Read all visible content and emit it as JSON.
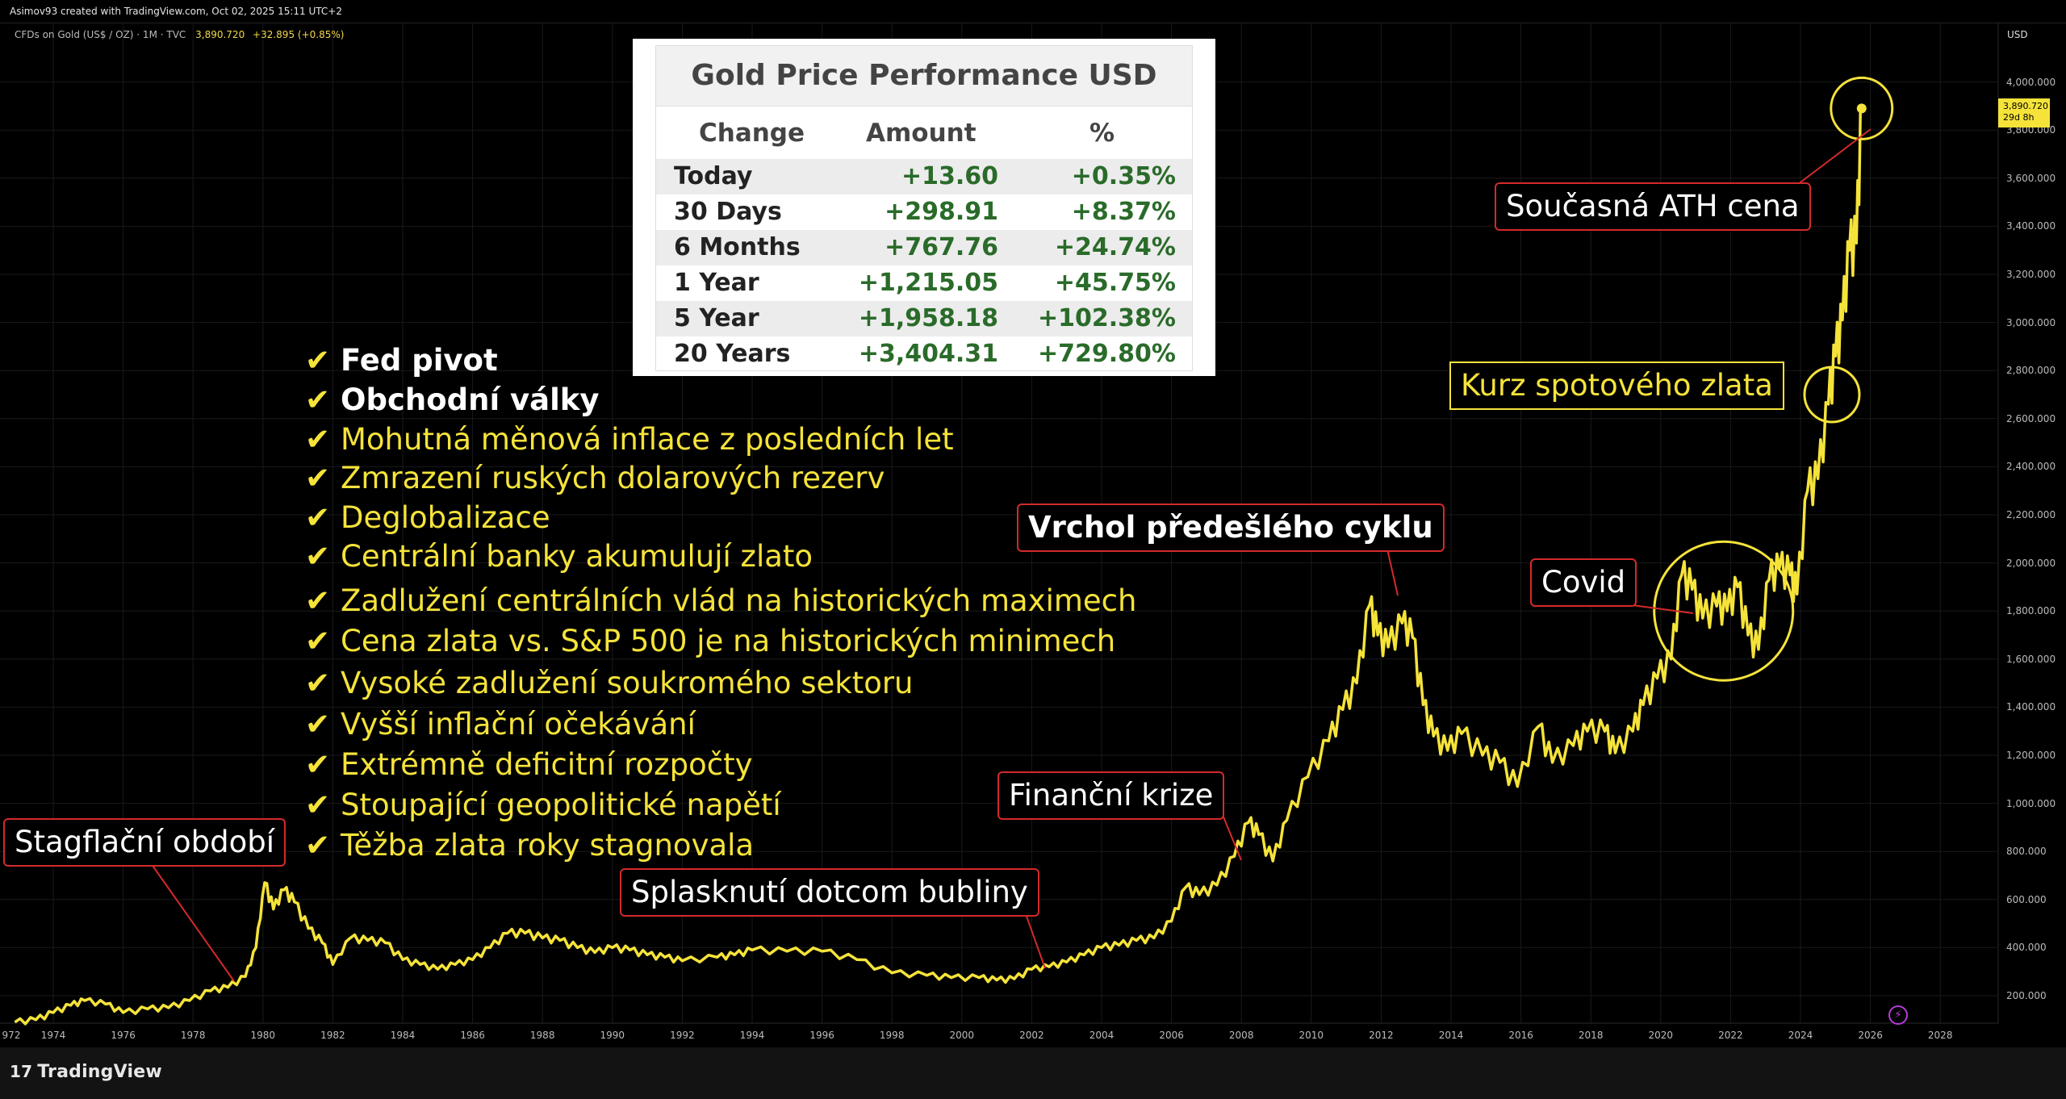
{
  "header": {
    "attribution": "Asimov93 created with TradingView.com, Oct 02, 2025 15:11 UTC+2",
    "symbol": "CFDs on Gold (US$ / OZ) · 1M · TVC",
    "last_price": "3,890.720",
    "change": "+32.895 (+0.85%)"
  },
  "axis": {
    "currency": "USD",
    "price_badge_value": "3,890.720",
    "price_badge_countdown": "29d 8h"
  },
  "footer": {
    "brand": "TradingView"
  },
  "performance_table": {
    "title": "Gold Price Performance USD",
    "columns": [
      "Change",
      "Amount",
      "%"
    ],
    "rows": [
      {
        "period": "Today",
        "amount": "+13.60",
        "percent": "+0.35%"
      },
      {
        "period": "30 Days",
        "amount": "+298.91",
        "percent": "+8.37%"
      },
      {
        "period": "6 Months",
        "amount": "+767.76",
        "percent": "+24.74%"
      },
      {
        "period": "1 Year",
        "amount": "+1,215.05",
        "percent": "+45.75%"
      },
      {
        "period": "5 Year",
        "amount": "+1,958.18",
        "percent": "+102.38%"
      },
      {
        "period": "20 Years",
        "amount": "+3,404.31",
        "percent": "+729.80%"
      }
    ]
  },
  "checklist": [
    {
      "text": "Fed pivot",
      "style": "white"
    },
    {
      "text": "Obchodní války",
      "style": "white"
    },
    {
      "text": "Mohutná měnová inflace z posledních let",
      "style": "yellow"
    },
    {
      "text": "Zmrazení ruských dolarových rezerv",
      "style": "yellow"
    },
    {
      "text": "Deglobalizace",
      "style": "yellow"
    },
    {
      "text": "Centrální banky akumulují zlato",
      "style": "yellow"
    },
    {
      "text": "Zadlužení centrálních vlád na historických maximech",
      "style": "yellow"
    },
    {
      "text": "Cena zlata vs. S&P 500 je na historických minimech",
      "style": "yellow"
    },
    {
      "text": "Vysoké zadlužení soukromého sektoru",
      "style": "yellow"
    },
    {
      "text": "Vyšší inflační očekávání",
      "style": "yellow"
    },
    {
      "text": "Extrémně deficitní rozpočty",
      "style": "yellow"
    },
    {
      "text": "Stoupající geopolitické napětí",
      "style": "yellow"
    },
    {
      "text": "Těžba zlata roky stagnovala",
      "style": "yellow"
    }
  ],
  "callouts": {
    "stagflation": "Stagflační období",
    "dotcom": "Splasknutí dotcom bubliny",
    "financial_crisis": "Finanční krize",
    "previous_peak": "Vrchol předešlého cyklu",
    "covid": "Covid",
    "current_ath": "Současná ATH cena",
    "spot_rate": "Kurz spotového zlata"
  },
  "chart_data": {
    "type": "line",
    "title": "",
    "xlabel": "",
    "ylabel": "",
    "series": [
      {
        "name": "",
        "color": "#f5e33a",
        "x": [
          1972.9,
          1973.5,
          1974.0,
          1974.5,
          1974.9,
          1975.5,
          1976.0,
          1976.7,
          1977.3,
          1977.9,
          1978.5,
          1979.0,
          1979.5,
          1979.8,
          1980.05,
          1980.3,
          1980.6,
          1980.9,
          1981.3,
          1981.7,
          1982.0,
          1982.5,
          1983.0,
          1983.5,
          1984.0,
          1984.5,
          1985.0,
          1985.5,
          1986.0,
          1986.5,
          1987.0,
          1987.5,
          1988.0,
          1988.5,
          1989.0,
          1989.5,
          1990.0,
          1990.5,
          1991.0,
          1991.5,
          1992.0,
          1993.0,
          1993.5,
          1994.0,
          1995.0,
          1996.0,
          1997.0,
          1998.0,
          1999.0,
          1999.7,
          2000.5,
          2001.0,
          2001.5,
          2002.0,
          2002.5,
          2003.0,
          2003.5,
          2004.0,
          2004.5,
          2005.0,
          2005.5,
          2006.0,
          2006.4,
          2006.8,
          2007.3,
          2007.8,
          2008.2,
          2008.5,
          2008.9,
          2009.3,
          2009.9,
          2010.5,
          2010.9,
          2011.3,
          2011.67,
          2011.9,
          2012.2,
          2012.6,
          2012.9,
          2013.2,
          2013.5,
          2013.9,
          2014.3,
          2014.9,
          2015.4,
          2015.9,
          2016.5,
          2016.9,
          2017.5,
          2017.9,
          2018.4,
          2018.7,
          2019.2,
          2019.5,
          2019.9,
          2020.3,
          2020.6,
          2020.9,
          2021.2,
          2021.6,
          2021.9,
          2022.2,
          2022.5,
          2022.8,
          2023.1,
          2023.4,
          2023.7,
          2023.9,
          2024.2,
          2024.5,
          2024.8,
          2025.0,
          2025.2,
          2025.4,
          2025.6,
          2025.75
        ],
        "y": [
          90,
          100,
          130,
          160,
          180,
          165,
          130,
          145,
          150,
          180,
          220,
          235,
          280,
          400,
          670,
          560,
          640,
          590,
          480,
          420,
          330,
          440,
          430,
          420,
          350,
          330,
          310,
          330,
          350,
          400,
          460,
          460,
          440,
          430,
          400,
          380,
          400,
          390,
          370,
          360,
          345,
          360,
          370,
          390,
          385,
          385,
          350,
          295,
          285,
          275,
          275,
          265,
          270,
          310,
          320,
          340,
          370,
          400,
          410,
          430,
          440,
          510,
          650,
          620,
          660,
          780,
          920,
          870,
          760,
          930,
          1110,
          1260,
          1390,
          1500,
          1825,
          1700,
          1650,
          1750,
          1690,
          1410,
          1280,
          1220,
          1290,
          1200,
          1170,
          1070,
          1320,
          1170,
          1240,
          1300,
          1300,
          1210,
          1300,
          1410,
          1520,
          1600,
          1950,
          1890,
          1770,
          1820,
          1800,
          1900,
          1700,
          1640,
          1930,
          1980,
          1950,
          1870,
          2300,
          2350,
          2660,
          2860,
          3010,
          3300,
          3330,
          3890
        ]
      }
    ],
    "y_ticks": [
      "4,000.000",
      "3,800.000",
      "3,600.000",
      "3,400.000",
      "3,200.000",
      "3,000.000",
      "2,800.000",
      "2,600.000",
      "2,400.000",
      "2,200.000",
      "2,000.000",
      "1,800.000",
      "1,600.000",
      "1,400.000",
      "1,200.000",
      "1,000.000",
      "800.000",
      "600.000",
      "400.000",
      "200.000"
    ],
    "x_ticks": [
      "972",
      "1974",
      "1976",
      "1978",
      "1980",
      "1982",
      "1984",
      "1986",
      "1988",
      "1990",
      "1992",
      "1994",
      "1996",
      "1998",
      "2000",
      "2002",
      "2004",
      "2006",
      "2008",
      "2010",
      "2012",
      "2014",
      "2016",
      "2018",
      "2020",
      "2022",
      "2024",
      "2026",
      "2028"
    ],
    "xlim": [
      1972.75,
      2029.0
    ],
    "ylim": [
      0,
      4300
    ],
    "grid": true,
    "highlight_circles": [
      {
        "label": "current_ath",
        "x": 2025.75,
        "y": 3890
      },
      {
        "label": "spot_rate",
        "x": 2024.9,
        "y": 2700
      },
      {
        "label": "covid",
        "x": 2021.8,
        "y": 1800
      }
    ]
  }
}
